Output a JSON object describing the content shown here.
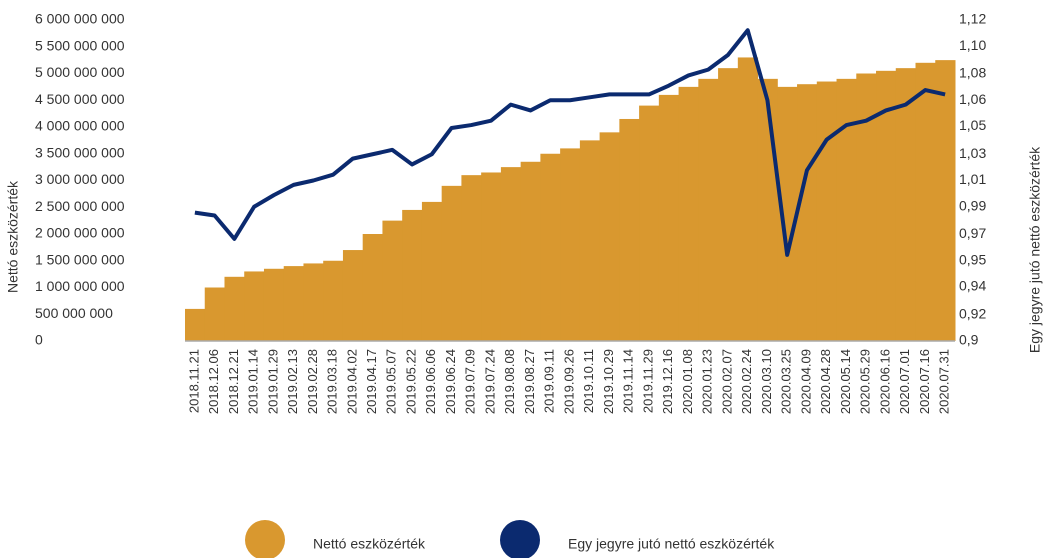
{
  "chart_data": {
    "type": "bar_line",
    "y_label": "Nettó eszközérték",
    "y2_label": "Egy jegyre jutó nettó eszközérték",
    "categories": [
      "2018.11.21",
      "2018.12.06",
      "2018.12.21",
      "2019.01.14",
      "2019.01.29",
      "2019.02.13",
      "2019.02.28",
      "2019.03.18",
      "2019.04.02",
      "2019.04.17",
      "2019.05.07",
      "2019.05.22",
      "2019.06.06",
      "2019.06.24",
      "2019.07.09",
      "2019.07.24",
      "2019.08.08",
      "2019.08.27",
      "2019.09.11",
      "2019.09.26",
      "2019.10.11",
      "2019.10.29",
      "2019.11.14",
      "2019.11.29",
      "2019.12.16",
      "2020.01.08",
      "2020.01.23",
      "2020.02.07",
      "2020.02.24",
      "2020.03.10",
      "2020.03.25",
      "2020.04.09",
      "2020.04.28",
      "2020.05.14",
      "2020.05.29",
      "2020.06.16",
      "2020.07.01",
      "2020.07.16",
      "2020.07.31"
    ],
    "series": [
      {
        "name": "Nettó eszközérték",
        "color": "#d9982f",
        "kind": "bar",
        "values": [
          600000000,
          1000000000,
          1200000000,
          1300000000,
          1350000000,
          1400000000,
          1450000000,
          1500000000,
          1700000000,
          2000000000,
          2250000000,
          2450000000,
          2600000000,
          2900000000,
          3100000000,
          3150000000,
          3250000000,
          3350000000,
          3500000000,
          3600000000,
          3750000000,
          3900000000,
          4150000000,
          4400000000,
          4600000000,
          4750000000,
          4900000000,
          5100000000,
          5300000000,
          4900000000,
          4750000000,
          4800000000,
          4850000000,
          4900000000,
          5000000000,
          5050000000,
          5100000000,
          5200000000,
          5250000000
        ]
      },
      {
        "name": "Egy jegyre jutó nettó eszközérték",
        "color": "#0b2a6f",
        "kind": "line",
        "axis": "y2",
        "values": [
          0.988,
          0.986,
          0.97,
          0.992,
          1.0,
          1.007,
          1.01,
          1.014,
          1.025,
          1.028,
          1.031,
          1.021,
          1.028,
          1.046,
          1.048,
          1.051,
          1.062,
          1.058,
          1.065,
          1.065,
          1.067,
          1.069,
          1.069,
          1.069,
          1.075,
          1.082,
          1.086,
          1.096,
          1.113,
          1.065,
          0.959,
          1.017,
          1.038,
          1.048,
          1.051,
          1.058,
          1.062,
          1.072,
          1.069
        ]
      }
    ],
    "ylim": [
      0,
      6000000000
    ],
    "yticks": [
      0,
      {
        "value": 500000000,
        "label": "500 000 000"
      },
      {
        "value": 1000000000,
        "label": "1 000 000 000"
      },
      {
        "value": 1500000000,
        "label": "1 500 000 000"
      },
      {
        "value": 2000000000,
        "label": "2 000 000 000"
      },
      {
        "value": 2500000000,
        "label": "2 500 000 000"
      },
      {
        "value": 3000000000,
        "label": "3 000 000 000"
      },
      {
        "value": 3500000000,
        "label": "3 500 000 000"
      },
      {
        "value": 4000000000,
        "label": "4 000 000 000"
      },
      {
        "value": 4500000000,
        "label": "4 500 000 000"
      },
      {
        "value": 5000000000,
        "label": "5 000 000 000"
      },
      {
        "value": 5500000000,
        "label": "5 500 000 000"
      },
      {
        "value": 6000000000,
        "label": "6 000 000 000"
      }
    ],
    "y2lim": [
      0.9,
      1.12
    ],
    "y2ticks": [
      {
        "value": 0.9,
        "label": "0,9"
      },
      {
        "value": 0.918,
        "label": "0,92"
      },
      {
        "value": 0.937,
        "label": "0,94"
      },
      {
        "value": 0.955,
        "label": "0,95"
      },
      {
        "value": 0.973,
        "label": "0,97"
      },
      {
        "value": 0.992,
        "label": "0,99"
      },
      {
        "value": 1.01,
        "label": "1,01"
      },
      {
        "value": 1.028,
        "label": "1,03"
      },
      {
        "value": 1.047,
        "label": "1,05"
      },
      {
        "value": 1.065,
        "label": "1,06"
      },
      {
        "value": 1.083,
        "label": "1,08"
      },
      {
        "value": 1.102,
        "label": "1,10"
      },
      {
        "value": 1.12,
        "label": "1,12"
      }
    ],
    "legend": "bottom"
  }
}
